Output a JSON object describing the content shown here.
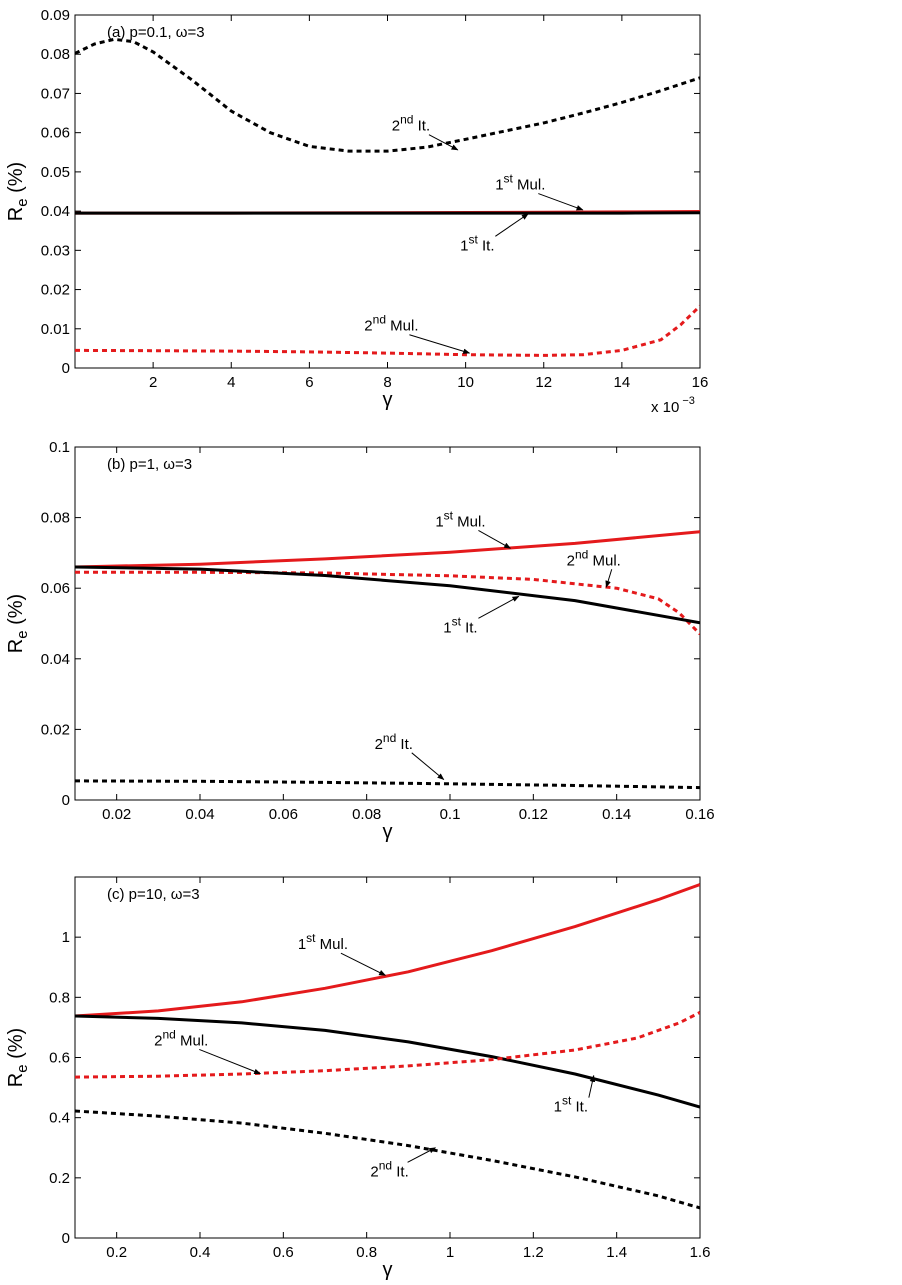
{
  "chart_data": [
    {
      "type": "line",
      "title": "(a) p=0.1,  ω=3",
      "xlabel": "γ",
      "ylabel": "R",
      "ylabel_sub": "e",
      "ylabel_unit": " (%)",
      "x_multiplier": "x 10",
      "x_multiplier_exp": "−3",
      "xlim": [
        0,
        16
      ],
      "ylim": [
        0,
        0.09
      ],
      "xticks": [
        2,
        4,
        6,
        8,
        10,
        12,
        14,
        16
      ],
      "xtick_labels": [
        "2",
        "4",
        "6",
        "8",
        "10",
        "12",
        "14",
        "16"
      ],
      "yticks": [
        0,
        0.01,
        0.02,
        0.03,
        0.04,
        0.05,
        0.06,
        0.07,
        0.08,
        0.09
      ],
      "ytick_labels": [
        "0",
        "0.01",
        "0.02",
        "0.03",
        "0.04",
        "0.05",
        "0.06",
        "0.07",
        "0.08",
        "0.09"
      ],
      "grid": false,
      "series": [
        {
          "color": "#000000",
          "dash": true,
          "x": [
            0,
            0.5,
            1,
            1.5,
            2,
            3,
            4,
            5,
            6,
            7,
            8,
            9,
            10,
            11,
            12,
            13,
            14,
            15,
            16
          ],
          "y": [
            0.0802,
            0.0826,
            0.0838,
            0.0832,
            0.0806,
            0.0734,
            0.0655,
            0.06,
            0.0565,
            0.0553,
            0.0553,
            0.0563,
            0.0583,
            0.0604,
            0.0625,
            0.065,
            0.0677,
            0.0707,
            0.074
          ]
        },
        {
          "color": "#e41a1c",
          "dash": false,
          "x": [
            0,
            4,
            8,
            12,
            14,
            16
          ],
          "y": [
            0.0395,
            0.0395,
            0.0396,
            0.0397,
            0.0398,
            0.0399
          ]
        },
        {
          "color": "#000000",
          "dash": false,
          "x": [
            0,
            4,
            8,
            12,
            14,
            16
          ],
          "y": [
            0.0395,
            0.0395,
            0.0395,
            0.0395,
            0.0395,
            0.0396
          ]
        },
        {
          "color": "#e41a1c",
          "dash": true,
          "x": [
            0,
            2,
            4,
            6,
            8,
            10,
            12,
            13,
            14,
            15,
            15.5,
            16
          ],
          "y": [
            0.0045,
            0.0044,
            0.0043,
            0.0041,
            0.0038,
            0.0034,
            0.0032,
            0.0034,
            0.0045,
            0.0072,
            0.011,
            0.0158
          ]
        }
      ],
      "annotations": [
        {
          "base": "2",
          "sup": "nd",
          "rest": " It.",
          "tx": 8.6,
          "ty": 0.0605,
          "ax": 9.8,
          "ay": 0.0556
        },
        {
          "base": "1",
          "sup": "st",
          "rest": " Mul.",
          "tx": 11.4,
          "ty": 0.0455,
          "ax": 13.0,
          "ay": 0.0403
        },
        {
          "base": "1",
          "sup": "st",
          "rest": " It.",
          "tx": 10.3,
          "ty": 0.03,
          "ax": 11.6,
          "ay": 0.0393
        },
        {
          "base": "2",
          "sup": "nd",
          "rest": " Mul.",
          "tx": 8.1,
          "ty": 0.0095,
          "ax": 10.1,
          "ay": 0.0038
        }
      ]
    },
    {
      "type": "line",
      "title": "(b) p=1,  ω=3",
      "xlabel": "γ",
      "ylabel": "R",
      "ylabel_sub": "e",
      "ylabel_unit": " (%)",
      "xlim": [
        0.01,
        0.16
      ],
      "ylim": [
        0,
        0.1
      ],
      "xticks": [
        0.02,
        0.04,
        0.06,
        0.08,
        0.1,
        0.12,
        0.14,
        0.16
      ],
      "xtick_labels": [
        "0.02",
        "0.04",
        "0.06",
        "0.08",
        "0.1",
        "0.12",
        "0.14",
        "0.16"
      ],
      "yticks": [
        0,
        0.02,
        0.04,
        0.06,
        0.08,
        0.1
      ],
      "ytick_labels": [
        "0",
        "0.02",
        "0.04",
        "0.06",
        "0.08",
        "0.1"
      ],
      "grid": false,
      "series": [
        {
          "color": "#e41a1c",
          "dash": false,
          "x": [
            0.01,
            0.04,
            0.07,
            0.1,
            0.13,
            0.16
          ],
          "y": [
            0.066,
            0.0668,
            0.0683,
            0.0702,
            0.0727,
            0.076
          ]
        },
        {
          "color": "#e41a1c",
          "dash": true,
          "x": [
            0.01,
            0.04,
            0.07,
            0.1,
            0.12,
            0.14,
            0.15,
            0.155,
            0.16
          ],
          "y": [
            0.0645,
            0.0645,
            0.0643,
            0.0635,
            0.0625,
            0.06,
            0.057,
            0.053,
            0.047
          ]
        },
        {
          "color": "#000000",
          "dash": false,
          "x": [
            0.01,
            0.04,
            0.07,
            0.1,
            0.13,
            0.16
          ],
          "y": [
            0.066,
            0.0654,
            0.0636,
            0.0607,
            0.0565,
            0.0502
          ]
        },
        {
          "color": "#000000",
          "dash": true,
          "x": [
            0.01,
            0.04,
            0.07,
            0.1,
            0.13,
            0.16
          ],
          "y": [
            0.0054,
            0.0053,
            0.005,
            0.0046,
            0.0041,
            0.0035
          ]
        }
      ],
      "annotations": [
        {
          "base": "1",
          "sup": "st",
          "rest": " Mul.",
          "tx": 0.1025,
          "ty": 0.0775,
          "ax": 0.1145,
          "ay": 0.0713
        },
        {
          "base": "2",
          "sup": "nd",
          "rest": " Mul.",
          "tx": 0.1345,
          "ty": 0.0665,
          "ax": 0.1375,
          "ay": 0.0603
        },
        {
          "base": "1",
          "sup": "st",
          "rest": " It.",
          "tx": 0.1025,
          "ty": 0.0475,
          "ax": 0.1165,
          "ay": 0.0577
        },
        {
          "base": "2",
          "sup": "nd",
          "rest": " It.",
          "tx": 0.0865,
          "ty": 0.0145,
          "ax": 0.0985,
          "ay": 0.0058
        }
      ]
    },
    {
      "type": "line",
      "title": "(c) p=10,  ω=3",
      "xlabel": "γ",
      "ylabel": "R",
      "ylabel_sub": "e",
      "ylabel_unit": " (%)",
      "xlim": [
        0.1,
        1.6
      ],
      "ylim": [
        0,
        1.2
      ],
      "xticks": [
        0.2,
        0.4,
        0.6,
        0.8,
        1,
        1.2,
        1.4,
        1.6
      ],
      "xtick_labels": [
        "0.2",
        "0.4",
        "0.6",
        "0.8",
        "1",
        "1.2",
        "1.4",
        "1.6"
      ],
      "yticks": [
        0,
        0.2,
        0.4,
        0.6,
        0.8,
        1
      ],
      "ytick_labels": [
        "0",
        "0.2",
        "0.4",
        "0.6",
        "0.8",
        "1"
      ],
      "grid": false,
      "series": [
        {
          "color": "#e41a1c",
          "dash": false,
          "x": [
            0.1,
            0.3,
            0.5,
            0.7,
            0.9,
            1.1,
            1.3,
            1.5,
            1.6
          ],
          "y": [
            0.738,
            0.755,
            0.785,
            0.83,
            0.885,
            0.955,
            1.035,
            1.125,
            1.175
          ]
        },
        {
          "color": "#000000",
          "dash": false,
          "x": [
            0.1,
            0.3,
            0.5,
            0.7,
            0.9,
            1.1,
            1.3,
            1.5,
            1.6
          ],
          "y": [
            0.738,
            0.73,
            0.715,
            0.69,
            0.652,
            0.603,
            0.545,
            0.475,
            0.435
          ]
        },
        {
          "color": "#e41a1c",
          "dash": true,
          "x": [
            0.1,
            0.3,
            0.5,
            0.7,
            0.9,
            1.1,
            1.3,
            1.45,
            1.55,
            1.6
          ],
          "y": [
            0.535,
            0.538,
            0.545,
            0.556,
            0.572,
            0.593,
            0.625,
            0.665,
            0.715,
            0.75
          ]
        },
        {
          "color": "#000000",
          "dash": true,
          "x": [
            0.1,
            0.3,
            0.5,
            0.7,
            0.9,
            1.1,
            1.3,
            1.5,
            1.6
          ],
          "y": [
            0.422,
            0.405,
            0.382,
            0.348,
            0.307,
            0.258,
            0.203,
            0.14,
            0.1
          ]
        }
      ],
      "annotations": [
        {
          "base": "1",
          "sup": "st",
          "rest": " Mul.",
          "tx": 0.695,
          "ty": 0.96,
          "ax": 0.845,
          "ay": 0.873
        },
        {
          "base": "2",
          "sup": "nd",
          "rest": " Mul.",
          "tx": 0.355,
          "ty": 0.64,
          "ax": 0.545,
          "ay": 0.546
        },
        {
          "base": "1",
          "sup": "st",
          "rest": " It.",
          "tx": 1.29,
          "ty": 0.42,
          "ax": 1.345,
          "ay": 0.54
        },
        {
          "base": "2",
          "sup": "nd",
          "rest": " It.",
          "tx": 0.855,
          "ty": 0.205,
          "ax": 0.965,
          "ay": 0.3
        }
      ]
    }
  ]
}
